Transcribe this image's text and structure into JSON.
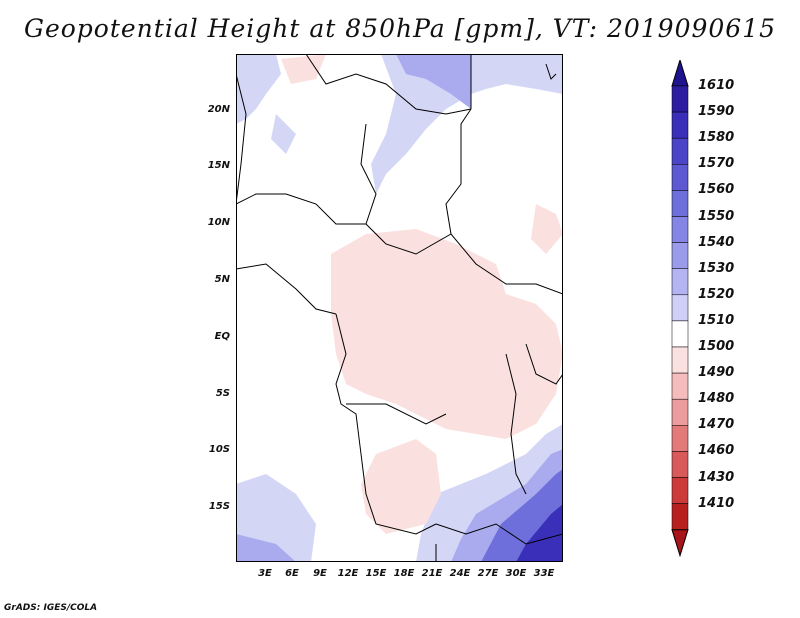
{
  "title": "Geopotential Height at 850hPa [gpm], VT: 2019090615",
  "footer": "GrADS: IGES/COLA",
  "map": {
    "region": "Central Africa",
    "y_ticks": [
      "20N",
      "15N",
      "10N",
      "5N",
      "EQ",
      "5S",
      "10S",
      "15S"
    ],
    "x_ticks": [
      "3E",
      "6E",
      "9E",
      "12E",
      "15E",
      "18E",
      "21E",
      "24E",
      "27E",
      "30E",
      "33E"
    ]
  },
  "colorbar": {
    "levels": [
      "1610",
      "1590",
      "1580",
      "1570",
      "1560",
      "1550",
      "1540",
      "1530",
      "1520",
      "1510",
      "1500",
      "1490",
      "1480",
      "1470",
      "1460",
      "1430",
      "1410"
    ],
    "colors": [
      "#2a1da0",
      "#3a2fb8",
      "#4b44c6",
      "#5c59d2",
      "#6f6fdc",
      "#8585e6",
      "#9b9bec",
      "#b4b4f2",
      "#cfcff7",
      "#ffffff",
      "#fbe0e0",
      "#f4bcbc",
      "#ec9c9c",
      "#e27a7a",
      "#d95a5a",
      "#cc3a3a",
      "#b82020"
    ],
    "top_color": "#1e1490",
    "bottom_color": "#a8161c"
  }
}
